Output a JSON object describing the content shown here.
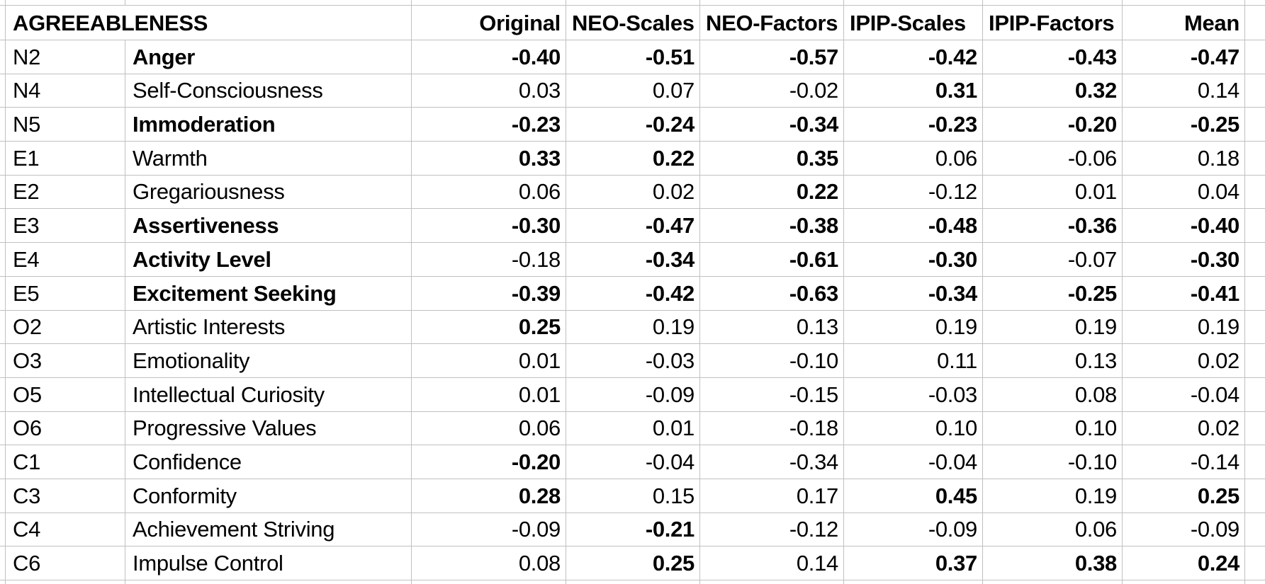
{
  "sheet": {
    "title": "AGREEABLENESS",
    "column_headers": [
      "Original",
      "NEO-Scales",
      "NEO-Factors",
      "IPIP-Scales",
      "IPIP-Factors",
      "Mean"
    ],
    "row_header_columns": [
      "code",
      "facet"
    ],
    "rows": [
      {
        "code": "N2",
        "name": "Anger",
        "name_bold": true,
        "values": [
          -0.4,
          -0.51,
          -0.57,
          -0.42,
          -0.43,
          -0.47
        ],
        "bold": [
          true,
          true,
          true,
          true,
          true,
          true
        ]
      },
      {
        "code": "N4",
        "name": "Self-Consciousness",
        "name_bold": false,
        "values": [
          0.03,
          0.07,
          -0.02,
          0.31,
          0.32,
          0.14
        ],
        "bold": [
          false,
          false,
          false,
          true,
          true,
          false
        ]
      },
      {
        "code": "N5",
        "name": "Immoderation",
        "name_bold": true,
        "values": [
          -0.23,
          -0.24,
          -0.34,
          -0.23,
          -0.2,
          -0.25
        ],
        "bold": [
          true,
          true,
          true,
          true,
          true,
          true
        ]
      },
      {
        "code": "E1",
        "name": "Warmth",
        "name_bold": false,
        "values": [
          0.33,
          0.22,
          0.35,
          0.06,
          -0.06,
          0.18
        ],
        "bold": [
          true,
          true,
          true,
          false,
          false,
          false
        ]
      },
      {
        "code": "E2",
        "name": "Gregariousness",
        "name_bold": false,
        "values": [
          0.06,
          0.02,
          0.22,
          -0.12,
          0.01,
          0.04
        ],
        "bold": [
          false,
          false,
          true,
          false,
          false,
          false
        ]
      },
      {
        "code": "E3",
        "name": "Assertiveness",
        "name_bold": true,
        "values": [
          -0.3,
          -0.47,
          -0.38,
          -0.48,
          -0.36,
          -0.4
        ],
        "bold": [
          true,
          true,
          true,
          true,
          true,
          true
        ]
      },
      {
        "code": "E4",
        "name": "Activity Level",
        "name_bold": true,
        "values": [
          -0.18,
          -0.34,
          -0.61,
          -0.3,
          -0.07,
          -0.3
        ],
        "bold": [
          false,
          true,
          true,
          true,
          false,
          true
        ]
      },
      {
        "code": "E5",
        "name": "Excitement Seeking",
        "name_bold": true,
        "values": [
          -0.39,
          -0.42,
          -0.63,
          -0.34,
          -0.25,
          -0.41
        ],
        "bold": [
          true,
          true,
          true,
          true,
          true,
          true
        ]
      },
      {
        "code": "O2",
        "name": "Artistic Interests",
        "name_bold": false,
        "values": [
          0.25,
          0.19,
          0.13,
          0.19,
          0.19,
          0.19
        ],
        "bold": [
          true,
          false,
          false,
          false,
          false,
          false
        ]
      },
      {
        "code": "O3",
        "name": "Emotionality",
        "name_bold": false,
        "values": [
          0.01,
          -0.03,
          -0.1,
          0.11,
          0.13,
          0.02
        ],
        "bold": [
          false,
          false,
          false,
          false,
          false,
          false
        ]
      },
      {
        "code": "O5",
        "name": "Intellectual Curiosity",
        "name_bold": false,
        "values": [
          0.01,
          -0.09,
          -0.15,
          -0.03,
          0.08,
          -0.04
        ],
        "bold": [
          false,
          false,
          false,
          false,
          false,
          false
        ]
      },
      {
        "code": "O6",
        "name": "Progressive Values",
        "name_bold": false,
        "values": [
          0.06,
          0.01,
          -0.18,
          0.1,
          0.1,
          0.02
        ],
        "bold": [
          false,
          false,
          false,
          false,
          false,
          false
        ]
      },
      {
        "code": "C1",
        "name": "Confidence",
        "name_bold": false,
        "values": [
          -0.2,
          -0.04,
          -0.34,
          -0.04,
          -0.1,
          -0.14
        ],
        "bold": [
          true,
          false,
          false,
          false,
          false,
          false
        ]
      },
      {
        "code": "C3",
        "name": "Conformity",
        "name_bold": false,
        "values": [
          0.28,
          0.15,
          0.17,
          0.45,
          0.19,
          0.25
        ],
        "bold": [
          true,
          false,
          false,
          true,
          false,
          true
        ]
      },
      {
        "code": "C4",
        "name": "Achievement Striving",
        "name_bold": false,
        "values": [
          -0.09,
          -0.21,
          -0.12,
          -0.09,
          0.06,
          -0.09
        ],
        "bold": [
          false,
          true,
          false,
          false,
          false,
          false
        ]
      },
      {
        "code": "C6",
        "name": "Impulse Control",
        "name_bold": false,
        "values": [
          0.08,
          0.25,
          0.14,
          0.37,
          0.38,
          0.24
        ],
        "bold": [
          false,
          true,
          false,
          true,
          true,
          true
        ]
      }
    ]
  },
  "colors": {
    "gridline": "#c0c0c0",
    "text": "#000000",
    "background": "#ffffff"
  }
}
